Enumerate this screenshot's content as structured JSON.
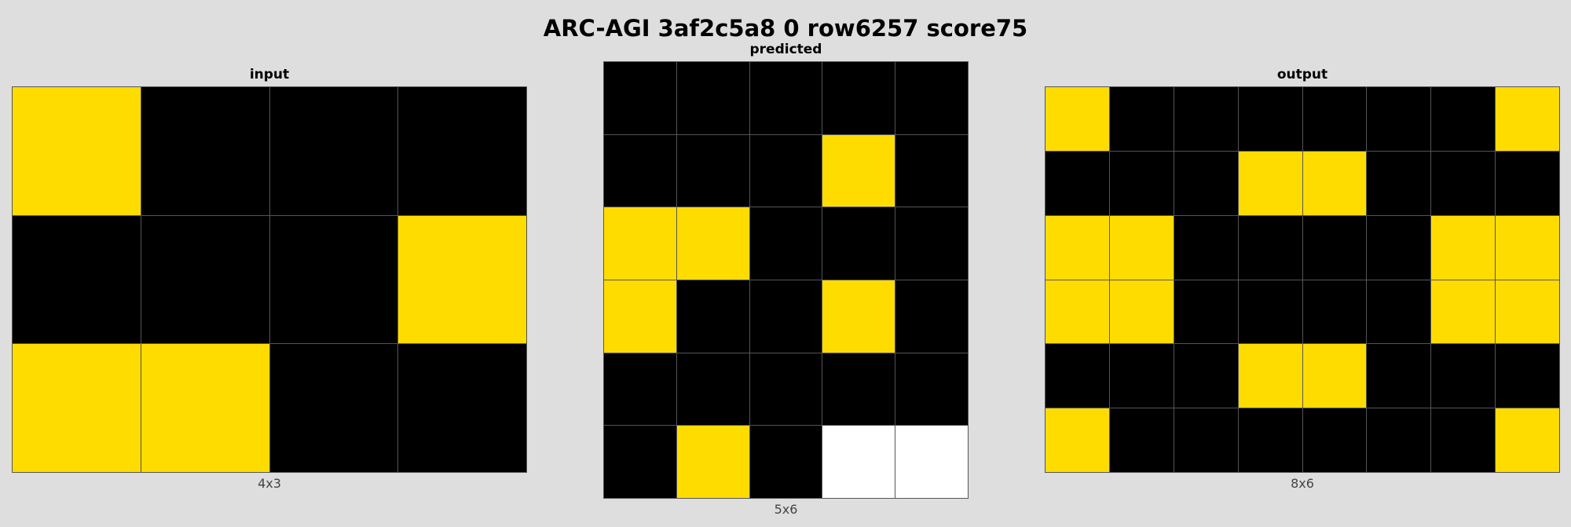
{
  "title": "ARC-AGI 3af2c5a8 0 row6257 score75",
  "colors": {
    "0": "#000000",
    "4": "#ffdc00",
    "w": "#ffffff"
  },
  "panels": {
    "input": {
      "label": "input",
      "caption": "4x3",
      "grid": [
        [
          4,
          0,
          0,
          0
        ],
        [
          0,
          0,
          0,
          4
        ],
        [
          4,
          4,
          0,
          0
        ]
      ]
    },
    "predicted": {
      "label": "predicted",
      "caption": "5x6",
      "grid": [
        [
          0,
          0,
          0,
          0,
          0
        ],
        [
          0,
          0,
          0,
          4,
          0
        ],
        [
          4,
          4,
          0,
          0,
          0
        ],
        [
          4,
          0,
          0,
          4,
          0
        ],
        [
          0,
          0,
          0,
          0,
          0
        ],
        [
          0,
          4,
          0,
          "w",
          "w"
        ]
      ]
    },
    "output": {
      "label": "output",
      "caption": "8x6",
      "grid": [
        [
          4,
          0,
          0,
          0,
          0,
          0,
          0,
          4
        ],
        [
          0,
          0,
          0,
          4,
          4,
          0,
          0,
          0
        ],
        [
          4,
          4,
          0,
          0,
          0,
          0,
          4,
          4
        ],
        [
          4,
          4,
          0,
          0,
          0,
          0,
          4,
          4
        ],
        [
          0,
          0,
          0,
          4,
          4,
          0,
          0,
          0
        ],
        [
          4,
          0,
          0,
          0,
          0,
          0,
          0,
          4
        ]
      ]
    }
  }
}
